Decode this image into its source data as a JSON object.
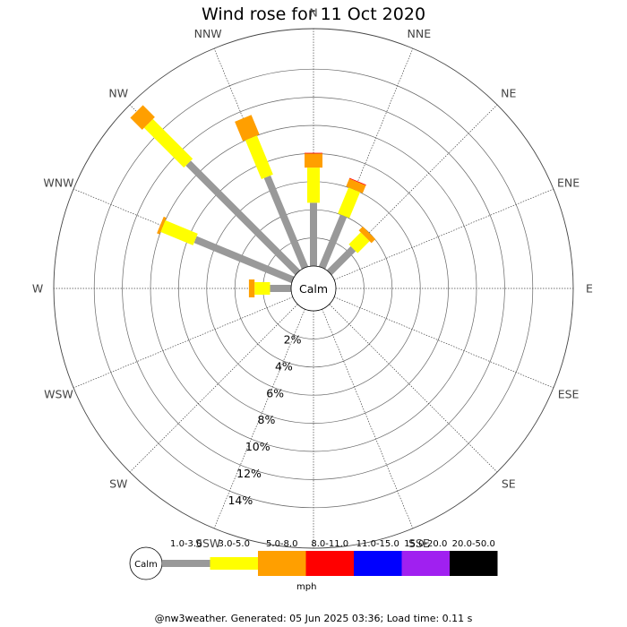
{
  "title": "Wind rose for 11 Oct 2020",
  "footer": "@nw3weather. Generated: 05 Jun 2025 03:36; Load time: 0.11 s",
  "chart_data": {
    "type": "wind_rose",
    "title": "Wind rose for 11 Oct 2020",
    "calm_label": "Calm",
    "unit": "mph",
    "directions": [
      "N",
      "NNE",
      "NE",
      "ENE",
      "E",
      "ESE",
      "SE",
      "SSE",
      "S",
      "SSW",
      "SW",
      "WSW",
      "W",
      "WNW",
      "NW",
      "NNW"
    ],
    "rings_percent": [
      2,
      4,
      6,
      8,
      10,
      12,
      14
    ],
    "ring_labels": [
      "2%",
      "4%",
      "6%",
      "8%",
      "10%",
      "12%",
      "14%"
    ],
    "speed_bins": [
      {
        "label": "1.0-3.0",
        "color": "#999999"
      },
      {
        "label": "3.0-5.0",
        "color": "#ffff00"
      },
      {
        "label": "5.0-8.0",
        "color": "#ff9f00"
      },
      {
        "label": "8.0-11.0",
        "color": "#ff0000"
      },
      {
        "label": "11.0-15.0",
        "color": "#0000ff"
      },
      {
        "label": "15.0-20.0",
        "color": "#a020f0"
      },
      {
        "label": "20.0-50.0",
        "color": "#000000"
      }
    ],
    "cumulative_percent": {
      "N": [
        4.5,
        7.0,
        8.0,
        8.05
      ],
      "NNE": [
        4.0,
        6.0,
        6.6,
        6.65
      ],
      "NE": [
        2.4,
        3.6,
        4.0,
        4.0
      ],
      "NNW": [
        7.0,
        10.0,
        11.5,
        11.5
      ],
      "NW": [
        11.0,
        15.0,
        16.2,
        16.2
      ],
      "WNW": [
        7.5,
        10.0,
        10.2,
        10.2
      ],
      "W": [
        1.5,
        2.6,
        3.0,
        3.0
      ],
      "ENE": [
        0,
        0,
        0,
        0
      ],
      "E": [
        0,
        0,
        0,
        0
      ],
      "ESE": [
        0,
        0,
        0,
        0
      ],
      "SE": [
        0,
        0,
        0,
        0
      ],
      "SSE": [
        0,
        0,
        0,
        0
      ],
      "S": [
        0,
        0,
        0,
        0
      ],
      "SSW": [
        0,
        0,
        0,
        0
      ],
      "SW": [
        0,
        0,
        0,
        0
      ],
      "WSW": [
        0,
        0,
        0,
        0
      ]
    }
  }
}
